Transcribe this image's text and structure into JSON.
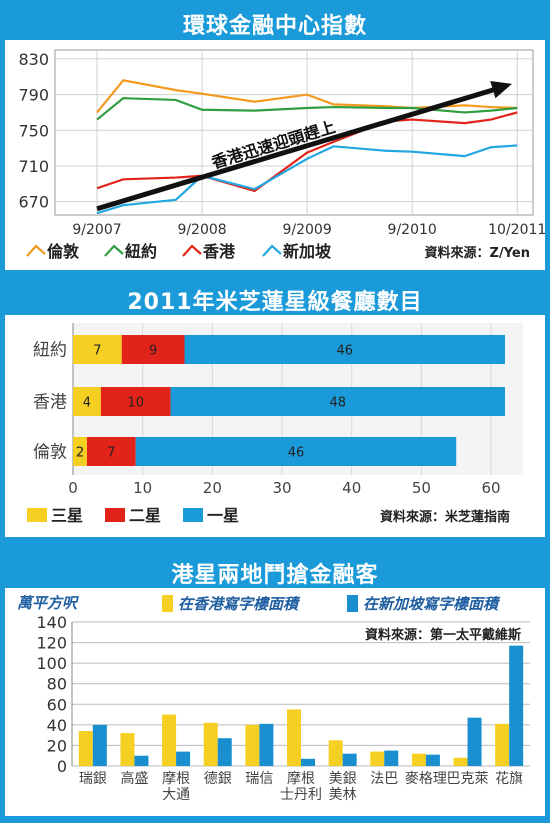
{
  "colors": {
    "background": "#1a9ad8",
    "london": "#f39a1e",
    "newyork": "#2e9e3e",
    "hongkong": "#e2231a",
    "singapore": "#22a7e0",
    "one_star": "#1a9ad8",
    "two_star": "#e2231a",
    "three_star": "#f5d023",
    "bar_hk": "#f5d023",
    "bar_sg": "#1a8fd0"
  },
  "titles": {
    "chart1": "環球金融中心指數",
    "chart2": "2011年米芝蓮星級餐廳數目",
    "chart3": "港星兩地鬥搶金融客"
  },
  "source": {
    "chart1": "資料來源：Z/Yen",
    "chart2": "資料來源：米芝蓮指南",
    "chart3": "資料來源：第一太平戴維斯"
  },
  "chart_data": [
    {
      "type": "line",
      "title": "環球金融中心指數",
      "x": [
        2007.0,
        2007.25,
        2007.75,
        2008.0,
        2008.5,
        2009.0,
        2009.25,
        2009.75,
        2010.0,
        2010.5,
        2010.75,
        2011.0
      ],
      "x_ticks": [
        "9/2007",
        "9/2008",
        "9/2009",
        "9/2010",
        "10/2011"
      ],
      "y_ticks": [
        670,
        710,
        750,
        790,
        830
      ],
      "ylim": [
        655,
        840
      ],
      "series": [
        {
          "name": "倫敦",
          "key": "london",
          "values": [
            770,
            806,
            795,
            791,
            782,
            790,
            779,
            777,
            775,
            778,
            776,
            775
          ]
        },
        {
          "name": "紐約",
          "key": "newyork",
          "values": [
            762,
            786,
            784,
            773,
            772,
            775,
            776,
            775,
            775,
            770,
            772,
            775
          ]
        },
        {
          "name": "香港",
          "key": "hongkong",
          "values": [
            685,
            695,
            697,
            699,
            682,
            725,
            737,
            760,
            762,
            758,
            762,
            770
          ]
        },
        {
          "name": "新加坡",
          "key": "singapore",
          "values": [
            657,
            666,
            672,
            699,
            684,
            718,
            732,
            727,
            726,
            721,
            731,
            733
          ]
        }
      ],
      "annotation": "香港迅速迎頭趕上"
    },
    {
      "type": "bar",
      "orientation": "horizontal",
      "stacked": true,
      "title": "2011年米芝蓮星級餐廳數目",
      "categories": [
        "紐約",
        "香港",
        "倫敦"
      ],
      "series": [
        {
          "name": "三星",
          "key": "three_star",
          "values": [
            7,
            4,
            2
          ]
        },
        {
          "name": "二星",
          "key": "two_star",
          "values": [
            9,
            10,
            7
          ]
        },
        {
          "name": "一星",
          "key": "one_star",
          "values": [
            46,
            48,
            46
          ]
        }
      ],
      "x_ticks": [
        0,
        10,
        20,
        30,
        40,
        50,
        60
      ],
      "xlim": [
        0,
        62
      ]
    },
    {
      "type": "bar",
      "title": "港星兩地鬥搶金融客",
      "ylabel": "萬平方呎",
      "categories": [
        "瑞銀",
        "高盛",
        "摩根\n大通",
        "德銀",
        "瑞信",
        "摩根\n士丹利",
        "美銀\n美林",
        "法巴",
        "麥格理",
        "巴克萊",
        "花旗"
      ],
      "series": [
        {
          "name": "在香港寫字樓面積",
          "key": "bar_hk",
          "values": [
            34,
            32,
            50,
            42,
            40,
            55,
            25,
            14,
            12,
            8,
            41
          ]
        },
        {
          "name": "在新加坡寫字樓面積",
          "key": "bar_sg",
          "values": [
            40,
            10,
            14,
            27,
            41,
            7,
            12,
            15,
            11,
            47,
            117
          ]
        }
      ],
      "y_ticks": [
        0,
        20,
        40,
        60,
        80,
        100,
        120,
        140
      ],
      "ylim": [
        0,
        140
      ]
    }
  ]
}
